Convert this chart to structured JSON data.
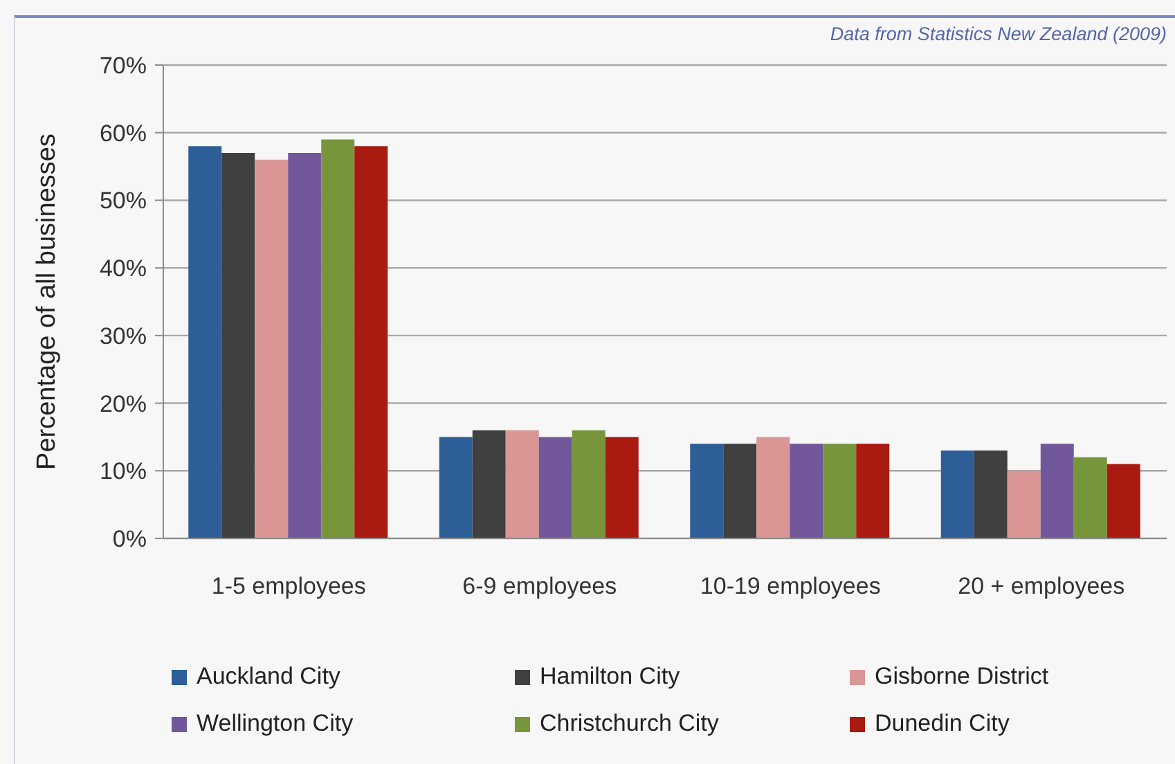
{
  "chart_data": {
    "type": "bar",
    "ylabel": "Percentage of all businesses",
    "annotations": [
      "Data from Statistics New Zealand (2009)"
    ],
    "categories": [
      "1-5 employees",
      "6-9 employees",
      "10-19 employees",
      "20 + employees"
    ],
    "series": [
      {
        "name": "Auckland City",
        "color": "#2e5e97",
        "values": [
          58,
          15,
          14,
          13
        ]
      },
      {
        "name": "Hamilton City",
        "color": "#404040",
        "values": [
          57,
          16,
          14,
          13
        ]
      },
      {
        "name": "Gisborne District",
        "color": "#d99694",
        "values": [
          56,
          16,
          15,
          10
        ]
      },
      {
        "name": "Wellington City",
        "color": "#72589a",
        "values": [
          57,
          15,
          14,
          14
        ]
      },
      {
        "name": "Christchurch City",
        "color": "#77963b",
        "values": [
          59,
          16,
          14,
          12
        ]
      },
      {
        "name": "Dunedin City",
        "color": "#a91a10",
        "values": [
          58,
          15,
          14,
          11
        ]
      }
    ],
    "ylim": [
      0,
      70
    ],
    "yticks": [
      {
        "value": 0,
        "label": "0%"
      },
      {
        "value": 10,
        "label": "10%"
      },
      {
        "value": 20,
        "label": "20%"
      },
      {
        "value": 30,
        "label": "30%"
      },
      {
        "value": 40,
        "label": "40%"
      },
      {
        "value": 50,
        "label": "50%"
      },
      {
        "value": 60,
        "label": "60%"
      },
      {
        "value": 70,
        "label": "70%"
      }
    ],
    "grid": "y",
    "legend": "bottom"
  }
}
